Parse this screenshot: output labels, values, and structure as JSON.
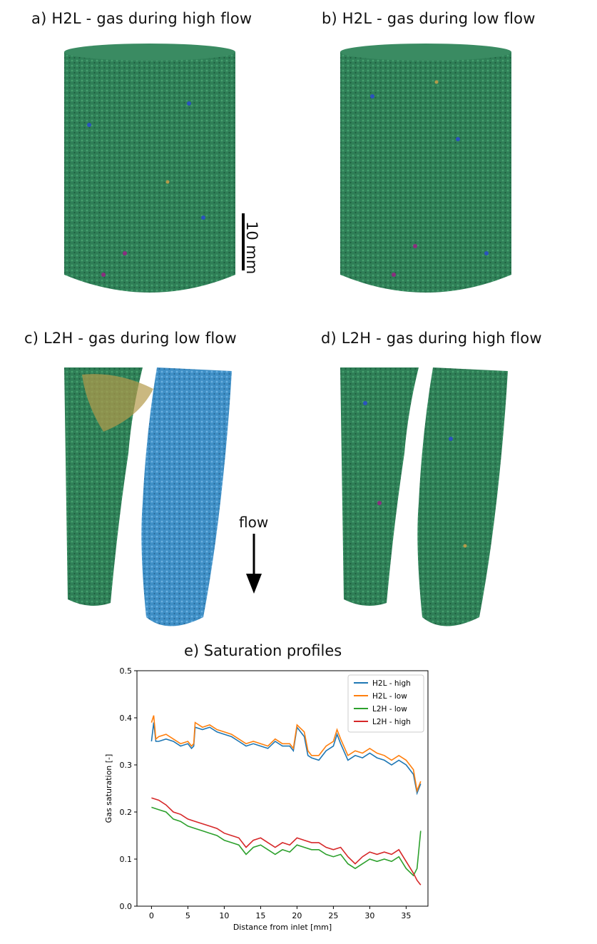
{
  "panels": {
    "a": "a) H2L - gas during high flow",
    "b": "b) H2L - gas during low flow",
    "c": "c) L2H - gas during low flow",
    "d": "d) L2H - gas during high flow",
    "e": "e) Saturation profiles"
  },
  "scalebar": {
    "label": "10 mm"
  },
  "flow": {
    "label": "flow"
  },
  "colors": {
    "rock_green": "#2f7f57",
    "gas_blue": "#3f8fc6",
    "gas_yellow": "#b49a4a",
    "h2l_high": "#1f77b4",
    "h2l_low": "#ff7f0e",
    "l2h_low": "#2ca02c",
    "l2h_high": "#d62728"
  },
  "chart_data": {
    "type": "line",
    "title": "",
    "xlabel": "Distance from inlet [mm]",
    "ylabel": "Gas saturation [-]",
    "xlim": [
      -2,
      38
    ],
    "ylim": [
      0.0,
      0.5
    ],
    "xticks": [
      0,
      5,
      10,
      15,
      20,
      25,
      30,
      35
    ],
    "yticks": [
      0.0,
      0.1,
      0.2,
      0.3,
      0.4,
      0.5
    ],
    "legend_position": "top-right",
    "grid": false,
    "series": [
      {
        "name": "H2L - high",
        "color": "#1f77b4",
        "x": [
          0,
          0.3,
          0.6,
          1,
          2,
          3,
          4,
          5,
          5.5,
          5.8,
          6,
          7,
          8,
          9,
          10,
          11,
          12,
          13,
          14,
          15,
          16,
          17,
          18,
          19,
          19.5,
          20,
          21,
          21.5,
          22,
          23,
          24,
          25,
          25.5,
          26,
          27,
          28,
          29,
          30,
          31,
          32,
          33,
          34,
          35,
          36,
          36.5,
          37
        ],
        "y": [
          0.35,
          0.39,
          0.35,
          0.35,
          0.355,
          0.35,
          0.34,
          0.345,
          0.335,
          0.34,
          0.38,
          0.375,
          0.38,
          0.37,
          0.365,
          0.36,
          0.35,
          0.34,
          0.345,
          0.34,
          0.335,
          0.35,
          0.34,
          0.34,
          0.33,
          0.38,
          0.36,
          0.32,
          0.315,
          0.31,
          0.33,
          0.34,
          0.365,
          0.345,
          0.31,
          0.32,
          0.315,
          0.325,
          0.315,
          0.31,
          0.3,
          0.31,
          0.3,
          0.28,
          0.24,
          0.26
        ]
      },
      {
        "name": "H2L - low",
        "color": "#ff7f0e",
        "x": [
          0,
          0.3,
          0.6,
          1,
          2,
          3,
          4,
          5,
          5.5,
          5.8,
          6,
          7,
          8,
          9,
          10,
          11,
          12,
          13,
          14,
          15,
          16,
          17,
          18,
          19,
          19.5,
          20,
          21,
          21.5,
          22,
          23,
          24,
          25,
          25.5,
          26,
          27,
          28,
          29,
          30,
          31,
          32,
          33,
          34,
          35,
          36,
          36.5,
          37
        ],
        "y": [
          0.39,
          0.405,
          0.355,
          0.36,
          0.365,
          0.355,
          0.345,
          0.35,
          0.34,
          0.345,
          0.39,
          0.38,
          0.385,
          0.375,
          0.37,
          0.365,
          0.355,
          0.345,
          0.35,
          0.345,
          0.34,
          0.355,
          0.345,
          0.345,
          0.335,
          0.385,
          0.37,
          0.33,
          0.32,
          0.32,
          0.34,
          0.35,
          0.375,
          0.355,
          0.32,
          0.33,
          0.325,
          0.335,
          0.325,
          0.32,
          0.31,
          0.32,
          0.31,
          0.29,
          0.245,
          0.265
        ]
      },
      {
        "name": "L2H - low",
        "color": "#2ca02c",
        "x": [
          0,
          1,
          2,
          3,
          4,
          5,
          6,
          7,
          8,
          9,
          10,
          11,
          12,
          13,
          14,
          15,
          16,
          17,
          18,
          19,
          20,
          21,
          22,
          23,
          24,
          25,
          26,
          27,
          28,
          29,
          30,
          31,
          32,
          33,
          34,
          35,
          36,
          36.5,
          37
        ],
        "y": [
          0.21,
          0.205,
          0.2,
          0.185,
          0.18,
          0.17,
          0.165,
          0.16,
          0.155,
          0.15,
          0.14,
          0.135,
          0.13,
          0.11,
          0.125,
          0.13,
          0.12,
          0.11,
          0.12,
          0.115,
          0.13,
          0.125,
          0.12,
          0.12,
          0.11,
          0.105,
          0.11,
          0.09,
          0.08,
          0.09,
          0.1,
          0.095,
          0.1,
          0.095,
          0.105,
          0.08,
          0.065,
          0.08,
          0.16
        ]
      },
      {
        "name": "L2H - high",
        "color": "#d62728",
        "x": [
          0,
          1,
          2,
          3,
          4,
          5,
          6,
          7,
          8,
          9,
          10,
          11,
          12,
          13,
          14,
          15,
          16,
          17,
          18,
          19,
          20,
          21,
          22,
          23,
          24,
          25,
          26,
          27,
          28,
          29,
          30,
          31,
          32,
          33,
          34,
          35,
          36,
          36.5,
          37
        ],
        "y": [
          0.23,
          0.225,
          0.215,
          0.2,
          0.195,
          0.185,
          0.18,
          0.175,
          0.17,
          0.165,
          0.155,
          0.15,
          0.145,
          0.125,
          0.14,
          0.145,
          0.135,
          0.125,
          0.135,
          0.13,
          0.145,
          0.14,
          0.135,
          0.135,
          0.125,
          0.12,
          0.125,
          0.105,
          0.09,
          0.105,
          0.115,
          0.11,
          0.115,
          0.11,
          0.12,
          0.095,
          0.07,
          0.055,
          0.045
        ]
      }
    ]
  }
}
